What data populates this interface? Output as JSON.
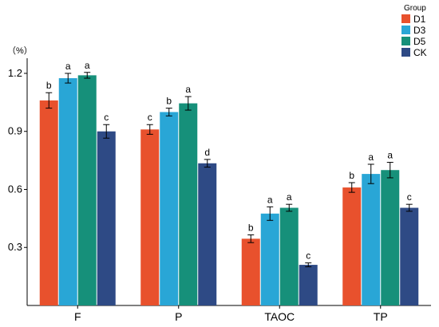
{
  "chart_data": {
    "type": "bar",
    "title": "",
    "xlabel": "",
    "ylabel": "",
    "unit_label": "（%）",
    "categories": [
      "F",
      "P",
      "TAOC",
      "TP"
    ],
    "ylim": [
      0,
      1.27
    ],
    "yticks": [
      0.3,
      0.6,
      0.9,
      1.2
    ],
    "ytick_labels": [
      "0.3",
      "0.6",
      "0.9",
      "1.2"
    ],
    "grid": false,
    "legend": {
      "title": "Group",
      "position": "top-right"
    },
    "series": [
      {
        "name": "D1",
        "color": "#E8512D",
        "values": [
          1.06,
          0.91,
          0.345,
          0.61
        ],
        "errors": [
          0.04,
          0.025,
          0.02,
          0.025
        ],
        "letters": [
          "b",
          "c",
          "b",
          "b"
        ]
      },
      {
        "name": "D3",
        "color": "#29A6D6",
        "values": [
          1.175,
          1.0,
          0.475,
          0.68
        ],
        "errors": [
          0.025,
          0.02,
          0.035,
          0.05
        ],
        "letters": [
          "a",
          "b",
          "a",
          "a"
        ]
      },
      {
        "name": "D5",
        "color": "#16907A",
        "values": [
          1.19,
          1.045,
          0.505,
          0.7
        ],
        "errors": [
          0.015,
          0.035,
          0.018,
          0.04
        ],
        "letters": [
          "a",
          "a",
          "a",
          "a"
        ]
      },
      {
        "name": "CK",
        "color": "#2E4A85",
        "values": [
          0.9,
          0.735,
          0.21,
          0.505
        ],
        "errors": [
          0.035,
          0.02,
          0.01,
          0.018
        ],
        "letters": [
          "c",
          "d",
          "c",
          "c"
        ]
      }
    ]
  }
}
